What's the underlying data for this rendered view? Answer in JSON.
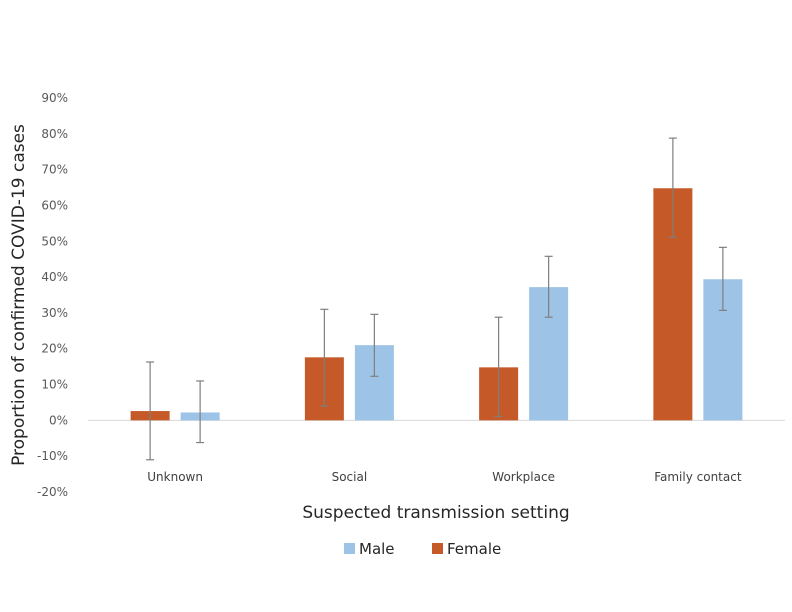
{
  "chart_data": {
    "type": "bar",
    "title": "",
    "xlabel": "Suspected transmission setting",
    "ylabel": "Proportion  of confirmed COVID-19 cases",
    "categories": [
      "Unknown",
      "Social",
      "Workplace",
      "Family contact"
    ],
    "ylim": [
      -0.2,
      0.9
    ],
    "yticks": [
      -0.2,
      -0.1,
      0,
      0.1,
      0.2,
      0.3,
      0.4,
      0.5,
      0.6,
      0.7,
      0.8,
      0.9
    ],
    "ytick_labels": [
      "-20%",
      "-10%",
      "0%",
      "10%",
      "20%",
      "30%",
      "40%",
      "50%",
      "60%",
      "70%",
      "80%",
      "90%"
    ],
    "grid": false,
    "legend_position": "bottom",
    "series": [
      {
        "name": "Female",
        "color": "#C55A28",
        "values": [
          0.026,
          0.176,
          0.148,
          0.648
        ],
        "error_low": [
          -0.11,
          0.04,
          0.011,
          0.511
        ],
        "error_high": [
          0.163,
          0.31,
          0.288,
          0.788
        ]
      },
      {
        "name": "Male",
        "color": "#9DC3E6",
        "values": [
          0.022,
          0.21,
          0.372,
          0.394
        ],
        "error_low": [
          -0.062,
          0.123,
          0.288,
          0.307
        ],
        "error_high": [
          0.11,
          0.296,
          0.458,
          0.483
        ]
      }
    ],
    "legend": [
      {
        "name": "Male",
        "color": "#9DC3E6"
      },
      {
        "name": "Female",
        "color": "#C55A28"
      }
    ]
  }
}
